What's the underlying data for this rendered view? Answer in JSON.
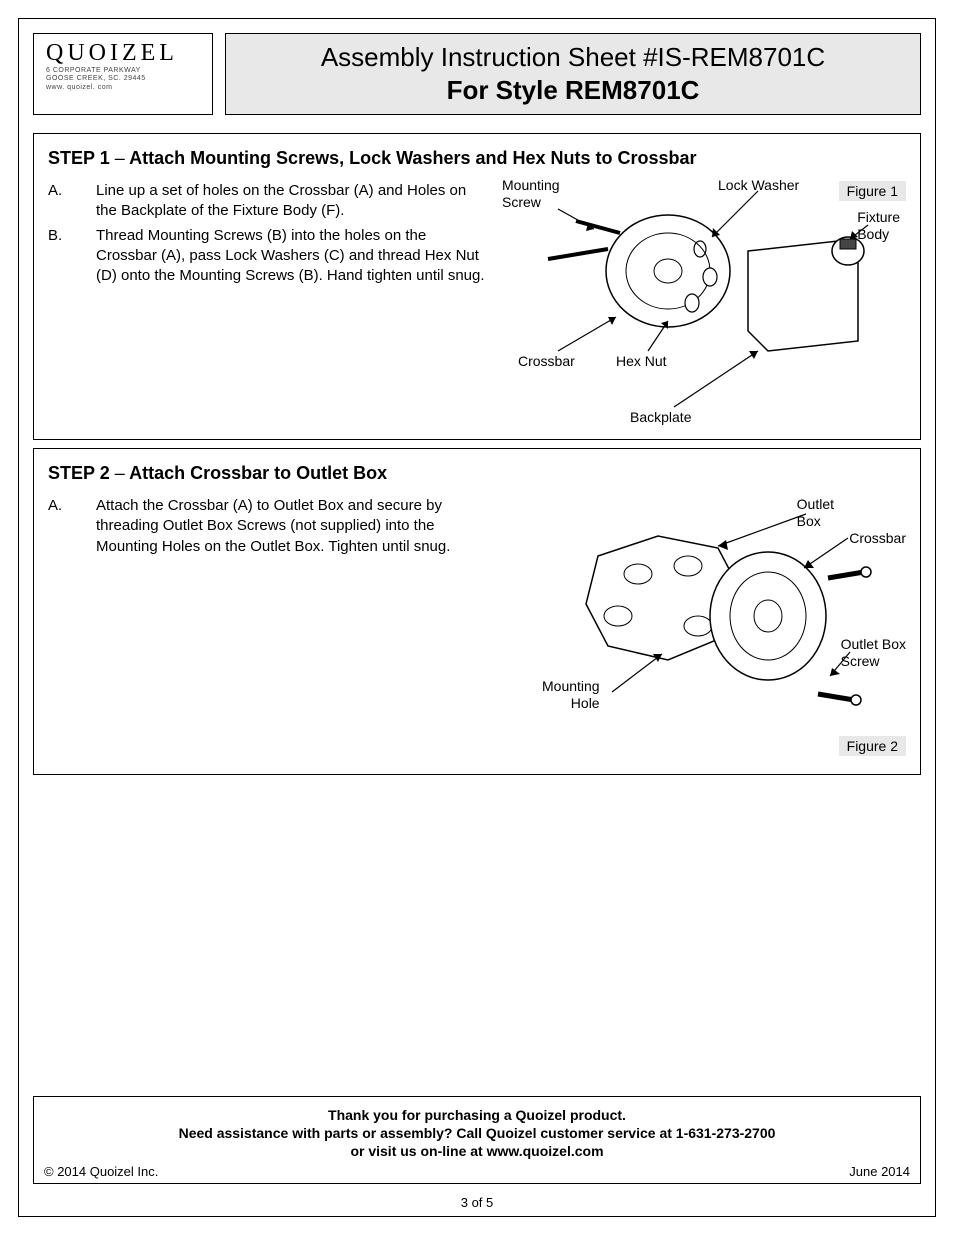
{
  "logo": {
    "brand": "QUOIZEL",
    "address_line1": "6 CORPORATE PARKWAY",
    "address_line2": "GOOSE CREEK, SC. 29445",
    "website": "www. quoizel. com"
  },
  "title": {
    "line1": "Assembly Instruction Sheet #IS-REM8701C",
    "line2": "For Style REM8701C"
  },
  "step1": {
    "heading_prefix": "STEP 1",
    "heading_dash": "–",
    "heading_title": "Attach Mounting Screws, Lock Washers and Hex Nuts to Crossbar",
    "items": [
      {
        "marker": "A.",
        "text": "Line up a set of holes on the Crossbar (A) and Holes on the Backplate of the Fixture Body (F)."
      },
      {
        "marker": "B.",
        "text": "Thread Mounting Screws (B) into the holes on the Crossbar (A), pass Lock Washers (C) and thread Hex Nut (D) onto the Mounting Screws (B). Hand tighten until snug."
      }
    ],
    "figure_label": "Figure 1",
    "callouts": {
      "mounting_screw": "Mounting\nScrew",
      "lock_washer": "Lock Washer",
      "fixture_body": "Fixture\nBody",
      "crossbar": "Crossbar",
      "hex_nut": "Hex Nut",
      "backplate": "Backplate"
    }
  },
  "step2": {
    "heading_prefix": "STEP 2",
    "heading_dash": "–",
    "heading_title": "Attach Crossbar to Outlet Box",
    "items": [
      {
        "marker": "A.",
        "text": "Attach the Crossbar (A) to Outlet Box and secure by threading Outlet Box Screws (not supplied) into the Mounting Holes on the Outlet Box. Tighten until snug."
      }
    ],
    "figure_label": "Figure 2",
    "callouts": {
      "outlet_box": "Outlet\nBox",
      "crossbar": "Crossbar",
      "outlet_box_screw": "Outlet Box\nScrew",
      "mounting_hole": "Mounting\nHole"
    }
  },
  "footer": {
    "line1": "Thank you for purchasing a Quoizel product.",
    "line2": "Need assistance with parts or assembly? Call Quoizel customer service at 1-631-273-2700",
    "line3": "or visit us on-line at www.quoizel.com",
    "copyright": "© 2014  Quoizel Inc.",
    "date": "June 2014"
  },
  "page_number": "3 of 5",
  "colors": {
    "border": "#000000",
    "header_bg": "#e8e8e8",
    "text": "#000000",
    "diagram_stroke": "#000000",
    "diagram_fill": "#ffffff"
  }
}
